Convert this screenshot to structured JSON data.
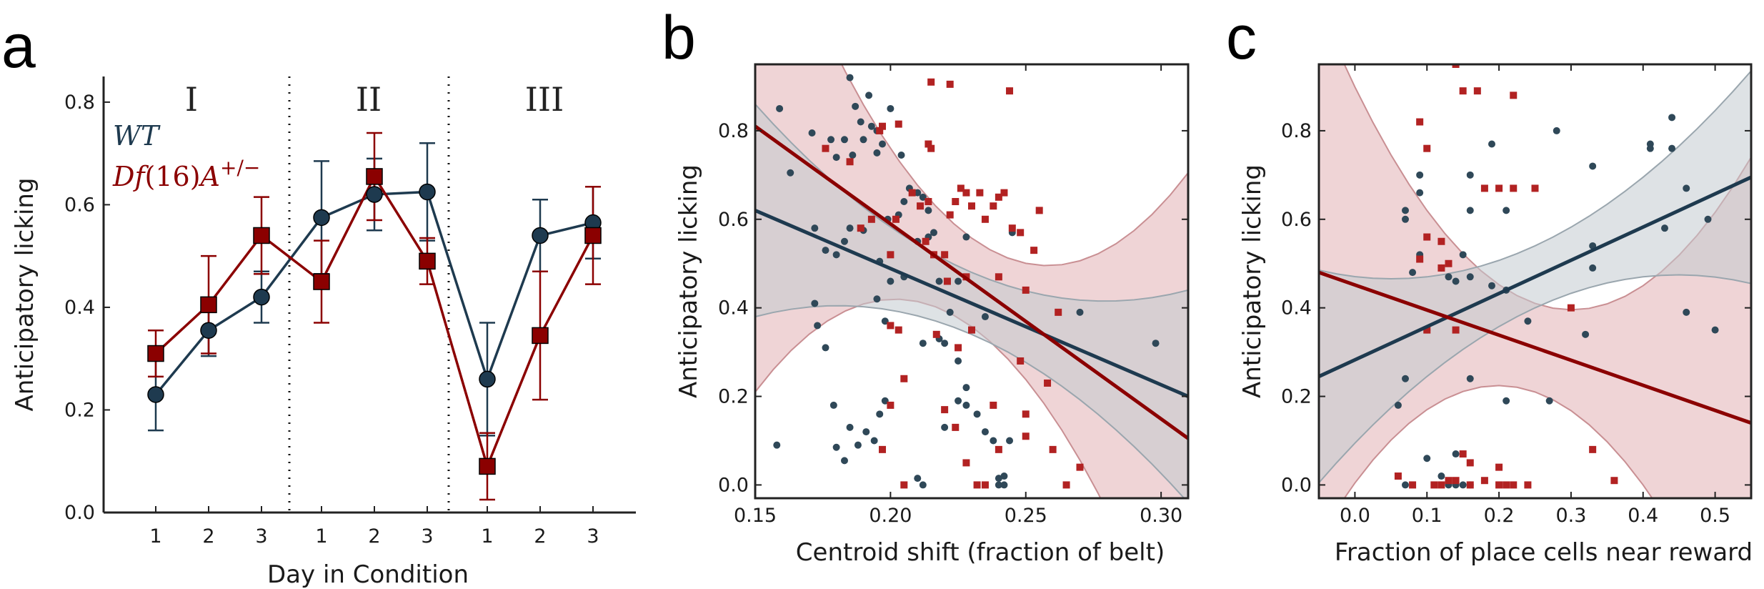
{
  "colors": {
    "wt": "#1e3a4f",
    "df": "#8b0000",
    "wt_band": "#c2cad0",
    "df_band": "#e2b1b4"
  },
  "panel_labels": [
    "a",
    "b",
    "c"
  ],
  "chart_data": [
    {
      "panel": "a",
      "type": "line",
      "xlabel": "Day in Condition",
      "ylabel": "Anticipatory licking",
      "ylim": [
        0.0,
        0.85
      ],
      "yticks": [
        "0.0",
        "0.2",
        "0.4",
        "0.6",
        "0.8"
      ],
      "categories": [
        "1",
        "2",
        "3",
        "1",
        "2",
        "3",
        "1",
        "2",
        "3"
      ],
      "condition_labels": [
        "I",
        "II",
        "III"
      ],
      "legend_placement": "top-left",
      "series": [
        {
          "name": "WT",
          "marker": "circle",
          "values": [
            0.23,
            0.355,
            0.42,
            0.575,
            0.62,
            0.625,
            0.26,
            0.54,
            0.565
          ],
          "err": [
            0.07,
            0.05,
            0.05,
            0.11,
            0.07,
            0.095,
            0.11,
            0.07,
            0.07
          ]
        },
        {
          "name": "Df(16)A+/−",
          "legend_main": "Df",
          "legend_rest": "(16)",
          "legend_a": "A",
          "legend_sup": "+/−",
          "marker": "square",
          "values": [
            0.31,
            0.405,
            0.54,
            0.45,
            0.655,
            0.49,
            0.09,
            0.345,
            0.54
          ],
          "err": [
            0.045,
            0.095,
            0.075,
            0.08,
            0.085,
            0.045,
            0.065,
            0.125,
            0.095
          ]
        }
      ]
    },
    {
      "panel": "b",
      "type": "scatter",
      "xlabel": "Centroid shift (fraction of belt)",
      "ylabel": "Anticipatory licking",
      "xlim": [
        0.15,
        0.31
      ],
      "ylim": [
        -0.03,
        0.95
      ],
      "xticks": [
        "0.15",
        "0.20",
        "0.25",
        "0.30"
      ],
      "yticks": [
        "0.0",
        "0.2",
        "0.4",
        "0.6",
        "0.8"
      ],
      "series": [
        {
          "name": "WT",
          "marker": "circle",
          "fit": [
            [
              0.15,
              0.62
            ],
            [
              0.31,
              0.2
            ]
          ],
          "points": [
            [
              0.159,
              0.85
            ],
            [
              0.163,
              0.705
            ],
            [
              0.171,
              0.795
            ],
            [
              0.178,
              0.78
            ],
            [
              0.18,
              0.74
            ],
            [
              0.183,
              0.78
            ],
            [
              0.185,
              0.92
            ],
            [
              0.187,
              0.855
            ],
            [
              0.189,
              0.82
            ],
            [
              0.19,
              0.78
            ],
            [
              0.192,
              0.88
            ],
            [
              0.193,
              0.81
            ],
            [
              0.195,
              0.8
            ],
            [
              0.197,
              0.77
            ],
            [
              0.2,
              0.85
            ],
            [
              0.204,
              0.745
            ],
            [
              0.186,
              0.745
            ],
            [
              0.195,
              0.75
            ],
            [
              0.172,
              0.58
            ],
            [
              0.176,
              0.53
            ],
            [
              0.18,
              0.52
            ],
            [
              0.183,
              0.55
            ],
            [
              0.185,
              0.58
            ],
            [
              0.19,
              0.575
            ],
            [
              0.196,
              0.505
            ],
            [
              0.199,
              0.6
            ],
            [
              0.205,
              0.64
            ],
            [
              0.207,
              0.67
            ],
            [
              0.21,
              0.66
            ],
            [
              0.212,
              0.65
            ],
            [
              0.214,
              0.62
            ],
            [
              0.216,
              0.57
            ],
            [
              0.203,
              0.61
            ],
            [
              0.2,
              0.46
            ],
            [
              0.205,
              0.47
            ],
            [
              0.21,
              0.55
            ],
            [
              0.218,
              0.46
            ],
            [
              0.225,
              0.46
            ],
            [
              0.228,
              0.56
            ],
            [
              0.235,
              0.38
            ],
            [
              0.245,
              0.57
            ],
            [
              0.27,
              0.39
            ],
            [
              0.298,
              0.32
            ],
            [
              0.172,
              0.41
            ],
            [
              0.173,
              0.36
            ],
            [
              0.176,
              0.31
            ],
            [
              0.195,
              0.42
            ],
            [
              0.198,
              0.37
            ],
            [
              0.212,
              0.32
            ],
            [
              0.218,
              0.33
            ],
            [
              0.22,
              0.32
            ],
            [
              0.222,
              0.39
            ],
            [
              0.225,
              0.28
            ],
            [
              0.179,
              0.18
            ],
            [
              0.18,
              0.085
            ],
            [
              0.183,
              0.055
            ],
            [
              0.185,
              0.13
            ],
            [
              0.188,
              0.09
            ],
            [
              0.191,
              0.12
            ],
            [
              0.194,
              0.1
            ],
            [
              0.196,
              0.16
            ],
            [
              0.198,
              0.19
            ],
            [
              0.158,
              0.09
            ],
            [
              0.21,
              0.015
            ],
            [
              0.212,
              0.0
            ],
            [
              0.22,
              0.13
            ],
            [
              0.225,
              0.19
            ],
            [
              0.228,
              0.18
            ],
            [
              0.232,
              0.16
            ],
            [
              0.235,
              0.12
            ],
            [
              0.238,
              0.1
            ],
            [
              0.24,
              0.0
            ],
            [
              0.24,
              0.015
            ],
            [
              0.242,
              0.02
            ],
            [
              0.242,
              0.0
            ],
            [
              0.244,
              0.1
            ],
            [
              0.228,
              0.22
            ],
            [
              0.214,
              0.56
            ]
          ]
        },
        {
          "name": "Df(16)A+/−",
          "marker": "square",
          "fit": [
            [
              0.15,
              0.81
            ],
            [
              0.31,
              0.105
            ]
          ],
          "points": [
            [
              0.185,
              0.73
            ],
            [
              0.196,
              0.8
            ],
            [
              0.197,
              0.81
            ],
            [
              0.203,
              0.815
            ],
            [
              0.214,
              0.77
            ],
            [
              0.215,
              0.76
            ],
            [
              0.215,
              0.91
            ],
            [
              0.222,
              0.905
            ],
            [
              0.244,
              0.89
            ],
            [
              0.176,
              0.76
            ],
            [
              0.189,
              0.58
            ],
            [
              0.193,
              0.6
            ],
            [
              0.2,
              0.52
            ],
            [
              0.202,
              0.6
            ],
            [
              0.208,
              0.66
            ],
            [
              0.211,
              0.63
            ],
            [
              0.213,
              0.55
            ],
            [
              0.214,
              0.64
            ],
            [
              0.216,
              0.52
            ],
            [
              0.22,
              0.52
            ],
            [
              0.222,
              0.61
            ],
            [
              0.224,
              0.64
            ],
            [
              0.226,
              0.67
            ],
            [
              0.228,
              0.66
            ],
            [
              0.23,
              0.63
            ],
            [
              0.233,
              0.66
            ],
            [
              0.235,
              0.6
            ],
            [
              0.238,
              0.63
            ],
            [
              0.24,
              0.65
            ],
            [
              0.242,
              0.66
            ],
            [
              0.245,
              0.58
            ],
            [
              0.248,
              0.57
            ],
            [
              0.253,
              0.53
            ],
            [
              0.255,
              0.62
            ],
            [
              0.221,
              0.46
            ],
            [
              0.228,
              0.47
            ],
            [
              0.24,
              0.47
            ],
            [
              0.25,
              0.44
            ],
            [
              0.23,
              0.35
            ],
            [
              0.248,
              0.28
            ],
            [
              0.258,
              0.23
            ],
            [
              0.262,
              0.39
            ],
            [
              0.2,
              0.36
            ],
            [
              0.203,
              0.35
            ],
            [
              0.205,
              0.24
            ],
            [
              0.2,
              0.18
            ],
            [
              0.197,
              0.08
            ],
            [
              0.217,
              0.34
            ],
            [
              0.22,
              0.17
            ],
            [
              0.224,
              0.13
            ],
            [
              0.228,
              0.05
            ],
            [
              0.232,
              0.0
            ],
            [
              0.235,
              0.0
            ],
            [
              0.238,
              0.18
            ],
            [
              0.24,
              0.08
            ],
            [
              0.25,
              0.11
            ],
            [
              0.26,
              0.08
            ],
            [
              0.265,
              0.0
            ],
            [
              0.27,
              0.04
            ],
            [
              0.25,
              0.16
            ],
            [
              0.205,
              0.0
            ],
            [
              0.225,
              0.31
            ]
          ]
        }
      ]
    },
    {
      "panel": "c",
      "type": "scatter",
      "xlabel": "Fraction of place cells near reward",
      "ylabel": "Anticipatory licking",
      "xlim": [
        -0.05,
        0.55
      ],
      "ylim": [
        -0.03,
        0.95
      ],
      "xticks": [
        "0.0",
        "0.1",
        "0.2",
        "0.3",
        "0.4",
        "0.5"
      ],
      "yticks": [
        "0.0",
        "0.2",
        "0.4",
        "0.6",
        "0.8"
      ],
      "series": [
        {
          "name": "WT",
          "marker": "circle",
          "fit": [
            [
              -0.05,
              0.245
            ],
            [
              0.55,
              0.695
            ]
          ],
          "points": [
            [
              0.07,
              0.62
            ],
            [
              0.07,
              0.6
            ],
            [
              0.09,
              0.7
            ],
            [
              0.09,
              0.66
            ],
            [
              0.16,
              0.7
            ],
            [
              0.16,
              0.62
            ],
            [
              0.19,
              0.77
            ],
            [
              0.21,
              0.62
            ],
            [
              0.28,
              0.8
            ],
            [
              0.33,
              0.72
            ],
            [
              0.41,
              0.77
            ],
            [
              0.41,
              0.76
            ],
            [
              0.44,
              0.83
            ],
            [
              0.44,
              0.76
            ],
            [
              0.46,
              0.67
            ],
            [
              0.43,
              0.58
            ],
            [
              0.49,
              0.6
            ],
            [
              0.33,
              0.54
            ],
            [
              0.08,
              0.48
            ],
            [
              0.09,
              0.52
            ],
            [
              0.12,
              0.49
            ],
            [
              0.13,
              0.47
            ],
            [
              0.15,
              0.52
            ],
            [
              0.16,
              0.47
            ],
            [
              0.14,
              0.46
            ],
            [
              0.19,
              0.45
            ],
            [
              0.21,
              0.44
            ],
            [
              0.24,
              0.37
            ],
            [
              0.32,
              0.34
            ],
            [
              0.33,
              0.49
            ],
            [
              0.46,
              0.39
            ],
            [
              0.5,
              0.35
            ],
            [
              0.06,
              0.18
            ],
            [
              0.07,
              0.24
            ],
            [
              0.1,
              0.35
            ],
            [
              0.16,
              0.24
            ],
            [
              0.21,
              0.19
            ],
            [
              0.27,
              0.19
            ],
            [
              0.1,
              0.06
            ],
            [
              0.12,
              0.02
            ],
            [
              0.13,
              0.0
            ],
            [
              0.14,
              0.0
            ],
            [
              0.15,
              0.0
            ],
            [
              0.16,
              0.0
            ],
            [
              0.07,
              0.0
            ],
            [
              0.14,
              0.07
            ]
          ]
        },
        {
          "name": "Df(16)A+/−",
          "marker": "square",
          "fit": [
            [
              -0.05,
              0.48
            ],
            [
              0.55,
              0.14
            ]
          ],
          "points": [
            [
              0.09,
              0.82
            ],
            [
              0.1,
              0.76
            ],
            [
              0.15,
              0.89
            ],
            [
              0.17,
              0.89
            ],
            [
              0.22,
              0.88
            ],
            [
              0.14,
              0.95
            ],
            [
              0.09,
              0.51
            ],
            [
              0.1,
              0.56
            ],
            [
              0.12,
              0.55
            ],
            [
              0.12,
              0.49
            ],
            [
              0.13,
              0.5
            ],
            [
              0.18,
              0.67
            ],
            [
              0.2,
              0.67
            ],
            [
              0.22,
              0.67
            ],
            [
              0.25,
              0.67
            ],
            [
              0.3,
              0.4
            ],
            [
              0.1,
              0.35
            ],
            [
              0.14,
              0.35
            ],
            [
              0.33,
              0.08
            ],
            [
              0.36,
              0.01
            ],
            [
              0.06,
              0.02
            ],
            [
              0.08,
              0.0
            ],
            [
              0.11,
              0.0
            ],
            [
              0.13,
              0.01
            ],
            [
              0.14,
              0.01
            ],
            [
              0.16,
              0.0
            ],
            [
              0.18,
              0.01
            ],
            [
              0.21,
              0.0
            ],
            [
              0.22,
              0.0
            ],
            [
              0.2,
              0.04
            ],
            [
              0.16,
              0.05
            ],
            [
              0.15,
              0.07
            ],
            [
              0.2,
              0.0
            ],
            [
              0.12,
              0.0
            ],
            [
              0.24,
              0.0
            ]
          ]
        }
      ]
    }
  ]
}
